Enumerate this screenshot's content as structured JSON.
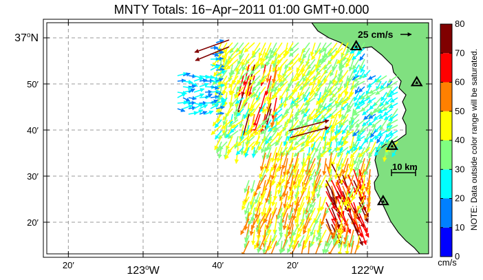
{
  "title": "MNTY Totals: 16−Apr−2011 01:00 GMT+0.000",
  "map": {
    "lat_labels": [
      {
        "text": "37",
        "deg": true,
        "hemi": "N",
        "lat": 37.0,
        "major": true
      },
      {
        "text": "50′",
        "lat": 36.8333
      },
      {
        "text": "40′",
        "lat": 36.6667
      },
      {
        "text": "30′",
        "lat": 36.5
      },
      {
        "text": "20′",
        "lat": 36.3333
      }
    ],
    "lon_labels": [
      {
        "text": "20′",
        "lon": -123.3333
      },
      {
        "text": "123",
        "deg": true,
        "hemi": "W",
        "lon": -123.0,
        "major": true
      },
      {
        "text": "40′",
        "lon": -122.6667
      },
      {
        "text": "20′",
        "lon": -122.3333
      },
      {
        "text": "122",
        "deg": true,
        "hemi": "W",
        "lon": -122.0,
        "major": true
      }
    ],
    "scale_arrow_label": "25 cm/s",
    "scale_bar_label": "10 km",
    "stations": [
      {
        "lat": 36.97,
        "lon": -122.05
      },
      {
        "lat": 36.84,
        "lon": -121.78
      },
      {
        "lat": 36.61,
        "lon": -121.89
      },
      {
        "lat": 36.41,
        "lon": -121.93
      }
    ],
    "land_color": "#80e080",
    "coast_color": "#000000"
  },
  "colorbar": {
    "ticks": [
      0,
      10,
      20,
      30,
      40,
      50,
      60,
      70,
      80
    ],
    "colors": [
      "#0000ff",
      "#0080ff",
      "#00ffff",
      "#80ff80",
      "#ffff00",
      "#ff8000",
      "#ff0000",
      "#800000"
    ],
    "unit": "cm/s",
    "note": "NOTE: Data outside color range will be saturated."
  }
}
